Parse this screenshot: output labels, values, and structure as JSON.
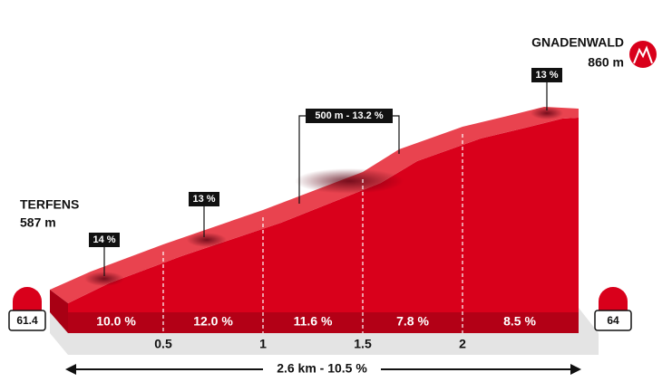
{
  "start": {
    "name": "TERFENS",
    "elevation": "587 m",
    "km": "61.4"
  },
  "finish": {
    "name": "GNADENWALD",
    "elevation": "860 m",
    "km": "64"
  },
  "segment_gradients": [
    "10.0 %",
    "12.0 %",
    "11.6 %",
    "7.8 %",
    "8.5 %"
  ],
  "distance_ticks": [
    "0.5",
    "1",
    "1.5",
    "2"
  ],
  "peak_gradients": [
    "14 %",
    "13 %",
    "500 m - 13.2 %",
    "13 %"
  ],
  "summary": "2.6 km - 10.5 %"
}
